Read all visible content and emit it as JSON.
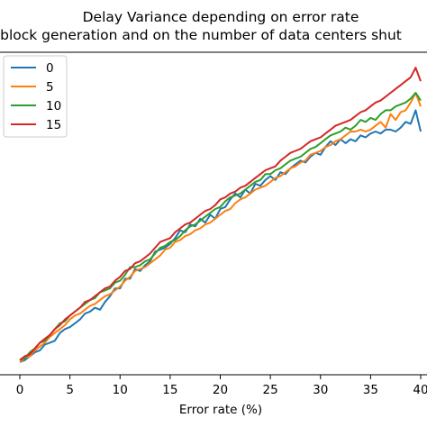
{
  "chart_data": {
    "type": "line",
    "title": "Delay Variance depending on error rate",
    "subtitle": "block generation and on the number of data centers shut",
    "xlabel": "Error rate (%)",
    "ylabel": "",
    "xlim": [
      -1,
      40
    ],
    "ylim": [
      0,
      16
    ],
    "xticks": [
      0,
      5,
      10,
      15,
      20,
      25,
      30,
      35,
      40
    ],
    "legend_position": "top-left",
    "grid": false,
    "x": [
      0,
      0.5,
      1,
      1.5,
      2,
      2.5,
      3,
      3.5,
      4,
      4.5,
      5,
      5.5,
      6,
      6.5,
      7,
      7.5,
      8,
      8.5,
      9,
      9.5,
      10,
      10.5,
      11,
      11.5,
      12,
      12.5,
      13,
      13.5,
      14,
      14.5,
      15,
      15.5,
      16,
      16.5,
      17,
      17.5,
      18,
      18.5,
      19,
      19.5,
      20,
      20.5,
      21,
      21.5,
      22,
      22.5,
      23,
      23.5,
      24,
      24.5,
      25,
      25.5,
      26,
      26.5,
      27,
      27.5,
      28,
      28.5,
      29,
      29.5,
      30,
      30.5,
      31,
      31.5,
      32,
      32.5,
      33,
      33.5,
      34,
      34.5,
      35,
      35.5,
      36,
      36.5,
      37,
      37.5,
      38,
      38.5,
      39,
      39.5,
      40
    ],
    "series": [
      {
        "name": "0",
        "color": "#1f77b4",
        "values": [
          0.1,
          0.2,
          0.4,
          0.6,
          0.7,
          1.0,
          1.1,
          1.2,
          1.6,
          1.8,
          1.9,
          2.1,
          2.3,
          2.6,
          2.7,
          2.9,
          2.8,
          3.2,
          3.5,
          3.9,
          3.9,
          4.4,
          4.4,
          4.9,
          4.8,
          5.1,
          5.3,
          5.8,
          5.9,
          6.0,
          6.2,
          6.5,
          6.9,
          6.8,
          7.2,
          7.1,
          7.5,
          7.3,
          7.7,
          7.5,
          8.0,
          8.1,
          8.5,
          8.8,
          8.6,
          9.0,
          8.8,
          9.3,
          9.2,
          9.5,
          9.7,
          9.5,
          9.9,
          9.8,
          10.1,
          10.3,
          10.5,
          10.4,
          10.7,
          10.9,
          10.8,
          11.2,
          11.5,
          11.3,
          11.6,
          11.4,
          11.6,
          11.5,
          11.8,
          11.7,
          11.9,
          12.0,
          11.9,
          12.1,
          12.1,
          12.0,
          12.2,
          12.5,
          12.4,
          13.1,
          12.0
        ]
      },
      {
        "name": "5",
        "color": "#ff7f0e",
        "values": [
          0.1,
          0.3,
          0.4,
          0.7,
          0.9,
          1.1,
          1.4,
          1.6,
          1.8,
          2.0,
          2.3,
          2.5,
          2.6,
          2.8,
          3.0,
          3.1,
          3.3,
          3.5,
          3.6,
          3.8,
          4.0,
          4.3,
          4.5,
          4.8,
          4.9,
          5.0,
          5.2,
          5.4,
          5.6,
          5.9,
          6.0,
          6.3,
          6.4,
          6.6,
          6.7,
          6.9,
          7.0,
          7.2,
          7.3,
          7.5,
          7.7,
          7.9,
          8.0,
          8.3,
          8.5,
          8.6,
          8.8,
          9.0,
          9.1,
          9.2,
          9.4,
          9.6,
          9.7,
          9.9,
          10.1,
          10.2,
          10.4,
          10.5,
          10.8,
          10.9,
          11.0,
          11.2,
          11.3,
          11.5,
          11.6,
          11.8,
          12.0,
          12.0,
          12.1,
          12.0,
          12.1,
          12.3,
          12.5,
          12.2,
          12.9,
          12.6,
          13.0,
          13.1,
          13.5,
          14.0,
          13.3
        ]
      },
      {
        "name": "10",
        "color": "#2ca02c",
        "values": [
          0.2,
          0.3,
          0.6,
          0.8,
          1.1,
          1.2,
          1.5,
          1.8,
          2.1,
          2.2,
          2.5,
          2.7,
          2.9,
          3.1,
          3.3,
          3.4,
          3.7,
          3.8,
          3.9,
          4.2,
          4.3,
          4.6,
          5.0,
          5.0,
          5.1,
          5.3,
          5.4,
          5.7,
          6.0,
          6.1,
          6.3,
          6.4,
          6.6,
          6.9,
          7.1,
          7.2,
          7.4,
          7.6,
          7.8,
          8.0,
          8.1,
          8.4,
          8.6,
          8.7,
          8.8,
          9.0,
          9.2,
          9.4,
          9.5,
          9.8,
          9.8,
          10.0,
          10.1,
          10.3,
          10.5,
          10.6,
          10.7,
          10.9,
          11.1,
          11.2,
          11.4,
          11.6,
          11.8,
          11.9,
          12.0,
          12.2,
          12.1,
          12.3,
          12.6,
          12.5,
          12.7,
          12.6,
          12.9,
          13.1,
          13.1,
          13.3,
          13.4,
          13.5,
          13.7,
          14.0,
          13.6
        ]
      },
      {
        "name": "15",
        "color": "#d62728",
        "values": [
          0.2,
          0.4,
          0.5,
          0.8,
          1.1,
          1.3,
          1.5,
          1.8,
          2.0,
          2.3,
          2.5,
          2.7,
          2.9,
          3.2,
          3.3,
          3.5,
          3.7,
          3.9,
          4.0,
          4.3,
          4.5,
          4.8,
          4.9,
          5.2,
          5.3,
          5.5,
          5.7,
          6.0,
          6.3,
          6.4,
          6.5,
          6.8,
          7.0,
          7.2,
          7.3,
          7.5,
          7.7,
          7.9,
          8.0,
          8.2,
          8.5,
          8.6,
          8.8,
          8.9,
          9.1,
          9.2,
          9.4,
          9.6,
          9.8,
          10.0,
          10.1,
          10.2,
          10.5,
          10.7,
          10.9,
          11.0,
          11.1,
          11.3,
          11.5,
          11.6,
          11.7,
          11.9,
          12.1,
          12.3,
          12.4,
          12.5,
          12.6,
          12.8,
          13.0,
          13.1,
          13.3,
          13.5,
          13.6,
          13.8,
          14.0,
          14.2,
          14.4,
          14.6,
          14.8,
          15.3,
          14.6
        ]
      }
    ]
  }
}
